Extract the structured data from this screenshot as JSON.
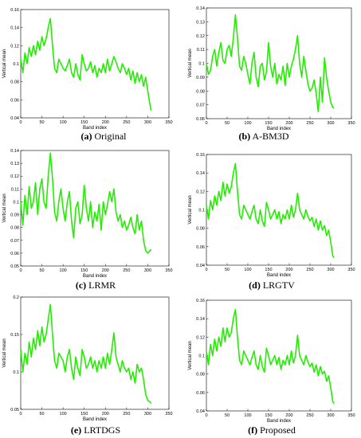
{
  "chart_data": [
    {
      "type": "line",
      "panel_letter": "(a)",
      "caption": "Original",
      "xlabel": "Band index",
      "ylabel": "Vertical mean",
      "xlim": [
        0,
        350
      ],
      "ylim": [
        0.04,
        0.16
      ],
      "xticks": [
        "0",
        "50",
        "100",
        "150",
        "200",
        "250",
        "300",
        "350"
      ],
      "yticks": [
        "0.04",
        "0.06",
        "0.08",
        "0.1",
        "0.12",
        "0.14",
        "0.16"
      ],
      "grid": false,
      "series_color": "#22ee00",
      "x": [
        0,
        5,
        10,
        15,
        20,
        25,
        30,
        35,
        40,
        45,
        50,
        55,
        60,
        65,
        70,
        75,
        80,
        85,
        90,
        95,
        100,
        105,
        110,
        115,
        120,
        125,
        130,
        135,
        140,
        145,
        150,
        155,
        160,
        165,
        170,
        175,
        180,
        185,
        190,
        195,
        200,
        205,
        210,
        215,
        220,
        225,
        230,
        235,
        240,
        245,
        250,
        255,
        260,
        265,
        270,
        275,
        280,
        285,
        290,
        295,
        300,
        305,
        308
      ],
      "y": [
        0.105,
        0.09,
        0.112,
        0.1,
        0.118,
        0.108,
        0.12,
        0.11,
        0.125,
        0.115,
        0.13,
        0.12,
        0.128,
        0.14,
        0.15,
        0.12,
        0.095,
        0.09,
        0.105,
        0.1,
        0.095,
        0.092,
        0.098,
        0.105,
        0.09,
        0.085,
        0.1,
        0.088,
        0.082,
        0.11,
        0.1,
        0.092,
        0.095,
        0.102,
        0.09,
        0.098,
        0.085,
        0.095,
        0.09,
        0.1,
        0.09,
        0.105,
        0.092,
        0.1,
        0.108,
        0.102,
        0.095,
        0.09,
        0.1,
        0.095,
        0.088,
        0.095,
        0.082,
        0.092,
        0.078,
        0.09,
        0.08,
        0.088,
        0.075,
        0.085,
        0.07,
        0.055,
        0.048
      ]
    },
    {
      "type": "line",
      "panel_letter": "(b)",
      "caption": "A-BM3D",
      "xlabel": "Band index",
      "ylabel": "Vertical mean",
      "xlim": [
        0,
        350
      ],
      "ylim": [
        0.06,
        0.14
      ],
      "xticks": [
        "0",
        "50",
        "100",
        "150",
        "200",
        "250",
        "300",
        "350"
      ],
      "yticks": [
        "0.06",
        "0.07",
        "0.08",
        "0.09",
        "0.1",
        "0.11",
        "0.12",
        "0.13",
        "0.14"
      ],
      "grid": false,
      "series_color": "#22ee00",
      "x": [
        0,
        5,
        10,
        15,
        20,
        25,
        30,
        35,
        40,
        45,
        50,
        55,
        60,
        65,
        70,
        75,
        80,
        85,
        90,
        95,
        100,
        105,
        110,
        115,
        120,
        125,
        130,
        135,
        140,
        145,
        150,
        155,
        160,
        165,
        170,
        175,
        180,
        185,
        190,
        195,
        200,
        205,
        210,
        215,
        220,
        225,
        230,
        235,
        240,
        245,
        250,
        255,
        260,
        265,
        270,
        275,
        280,
        285,
        290,
        295,
        300,
        305,
        308
      ],
      "y": [
        0.1,
        0.092,
        0.095,
        0.105,
        0.11,
        0.098,
        0.108,
        0.115,
        0.102,
        0.1,
        0.11,
        0.113,
        0.105,
        0.118,
        0.135,
        0.118,
        0.098,
        0.095,
        0.105,
        0.1,
        0.092,
        0.085,
        0.1,
        0.108,
        0.09,
        0.083,
        0.098,
        0.1,
        0.088,
        0.094,
        0.115,
        0.098,
        0.09,
        0.1,
        0.085,
        0.092,
        0.088,
        0.098,
        0.084,
        0.1,
        0.09,
        0.098,
        0.103,
        0.11,
        0.12,
        0.1,
        0.09,
        0.105,
        0.095,
        0.085,
        0.08,
        0.082,
        0.088,
        0.078,
        0.065,
        0.09,
        0.072,
        0.104,
        0.09,
        0.08,
        0.072,
        0.068,
        0.068
      ]
    },
    {
      "type": "line",
      "panel_letter": "(c)",
      "caption": "LRMR",
      "xlabel": "Band index",
      "ylabel": "Vertical mean",
      "xlim": [
        0,
        350
      ],
      "ylim": [
        0.05,
        0.14
      ],
      "xticks": [
        "0",
        "50",
        "100",
        "150",
        "200",
        "250",
        "300",
        "350"
      ],
      "yticks": [
        "0.05",
        "0.06",
        "0.07",
        "0.08",
        "0.09",
        "0.1",
        "0.11",
        "0.12",
        "0.13",
        "0.14"
      ],
      "grid": false,
      "series_color": "#22ee00",
      "x": [
        0,
        5,
        10,
        15,
        20,
        25,
        30,
        35,
        40,
        45,
        50,
        55,
        60,
        65,
        70,
        75,
        80,
        85,
        90,
        95,
        100,
        105,
        110,
        115,
        120,
        125,
        130,
        135,
        140,
        145,
        150,
        155,
        160,
        165,
        170,
        175,
        180,
        185,
        190,
        195,
        200,
        205,
        210,
        215,
        220,
        225,
        230,
        235,
        240,
        245,
        250,
        255,
        260,
        265,
        270,
        275,
        280,
        285,
        290,
        295,
        300,
        305,
        308
      ],
      "y": [
        0.1,
        0.082,
        0.105,
        0.09,
        0.112,
        0.095,
        0.1,
        0.115,
        0.09,
        0.11,
        0.118,
        0.1,
        0.095,
        0.12,
        0.138,
        0.118,
        0.092,
        0.085,
        0.1,
        0.11,
        0.095,
        0.085,
        0.1,
        0.108,
        0.085,
        0.072,
        0.095,
        0.1,
        0.083,
        0.09,
        0.113,
        0.095,
        0.085,
        0.1,
        0.08,
        0.092,
        0.085,
        0.098,
        0.078,
        0.1,
        0.09,
        0.098,
        0.108,
        0.1,
        0.11,
        0.092,
        0.085,
        0.09,
        0.08,
        0.085,
        0.078,
        0.082,
        0.088,
        0.08,
        0.075,
        0.09,
        0.078,
        0.085,
        0.07,
        0.062,
        0.06,
        0.062,
        0.063
      ]
    },
    {
      "type": "line",
      "panel_letter": "(d)",
      "caption": "LRGTV",
      "xlabel": "Band index",
      "ylabel": "Vertical mean",
      "xlim": [
        0,
        350
      ],
      "ylim": [
        0.04,
        0.16
      ],
      "xticks": [
        "0",
        "50",
        "100",
        "150",
        "200",
        "250",
        "300",
        "350"
      ],
      "yticks": [
        "0.04",
        "0.06",
        "0.08",
        "0.1",
        "0.12",
        "0.14",
        "0.16"
      ],
      "grid": false,
      "series_color": "#22ee00",
      "x": [
        0,
        5,
        10,
        15,
        20,
        25,
        30,
        35,
        40,
        45,
        50,
        55,
        60,
        65,
        70,
        75,
        80,
        85,
        90,
        95,
        100,
        105,
        110,
        115,
        120,
        125,
        130,
        135,
        140,
        145,
        150,
        155,
        160,
        165,
        170,
        175,
        180,
        185,
        190,
        195,
        200,
        205,
        210,
        215,
        220,
        225,
        230,
        235,
        240,
        245,
        250,
        255,
        260,
        265,
        270,
        275,
        280,
        285,
        290,
        295,
        300,
        305,
        308
      ],
      "y": [
        0.105,
        0.09,
        0.11,
        0.1,
        0.115,
        0.105,
        0.12,
        0.11,
        0.13,
        0.115,
        0.128,
        0.118,
        0.125,
        0.14,
        0.15,
        0.12,
        0.095,
        0.09,
        0.105,
        0.1,
        0.095,
        0.09,
        0.098,
        0.105,
        0.09,
        0.085,
        0.1,
        0.088,
        0.082,
        0.108,
        0.1,
        0.09,
        0.095,
        0.1,
        0.09,
        0.098,
        0.085,
        0.095,
        0.09,
        0.1,
        0.09,
        0.105,
        0.092,
        0.1,
        0.118,
        0.1,
        0.095,
        0.09,
        0.1,
        0.093,
        0.088,
        0.092,
        0.082,
        0.09,
        0.078,
        0.088,
        0.078,
        0.083,
        0.072,
        0.078,
        0.065,
        0.05,
        0.048
      ]
    },
    {
      "type": "line",
      "panel_letter": "(e)",
      "caption": "LRTDGS",
      "xlabel": "Band index",
      "ylabel": "Vertical mean",
      "xlim": [
        0,
        350
      ],
      "ylim": [
        0.05,
        0.2
      ],
      "xticks": [
        "0",
        "50",
        "100",
        "150",
        "200",
        "250",
        "300",
        "350"
      ],
      "yticks": [
        "0.05",
        "0.1",
        "0.15",
        "0.2"
      ],
      "grid": false,
      "series_color": "#22ee00",
      "x": [
        0,
        5,
        10,
        15,
        20,
        25,
        30,
        35,
        40,
        45,
        50,
        55,
        60,
        65,
        70,
        75,
        80,
        85,
        90,
        95,
        100,
        105,
        110,
        115,
        120,
        125,
        130,
        135,
        140,
        145,
        150,
        155,
        160,
        165,
        170,
        175,
        180,
        185,
        190,
        195,
        200,
        205,
        210,
        215,
        220,
        225,
        230,
        235,
        240,
        245,
        250,
        255,
        260,
        265,
        270,
        275,
        280,
        285,
        290,
        295,
        300,
        305,
        308
      ],
      "y": [
        0.13,
        0.1,
        0.125,
        0.11,
        0.14,
        0.12,
        0.145,
        0.13,
        0.155,
        0.135,
        0.16,
        0.14,
        0.15,
        0.17,
        0.19,
        0.15,
        0.115,
        0.105,
        0.125,
        0.12,
        0.115,
        0.1,
        0.12,
        0.13,
        0.105,
        0.09,
        0.12,
        0.105,
        0.095,
        0.13,
        0.12,
        0.105,
        0.11,
        0.12,
        0.105,
        0.115,
        0.1,
        0.115,
        0.105,
        0.12,
        0.105,
        0.125,
        0.11,
        0.13,
        0.152,
        0.12,
        0.11,
        0.1,
        0.115,
        0.105,
        0.1,
        0.105,
        0.09,
        0.1,
        0.085,
        0.11,
        0.1,
        0.105,
        0.09,
        0.07,
        0.062,
        0.06,
        0.058
      ]
    },
    {
      "type": "line",
      "panel_letter": "(f)",
      "caption": "Proposed",
      "xlabel": "Band index",
      "ylabel": "Vertical mean",
      "xlim": [
        0,
        350
      ],
      "ylim": [
        0.04,
        0.16
      ],
      "xticks": [
        "0",
        "50",
        "100",
        "150",
        "200",
        "250",
        "300",
        "350"
      ],
      "yticks": [
        "0.04",
        "0.06",
        "0.08",
        "0.1",
        "0.12",
        "0.14",
        "0.16"
      ],
      "grid": false,
      "series_color": "#22ee00",
      "x": [
        0,
        5,
        10,
        15,
        20,
        25,
        30,
        35,
        40,
        45,
        50,
        55,
        60,
        65,
        70,
        75,
        80,
        85,
        90,
        95,
        100,
        105,
        110,
        115,
        120,
        125,
        130,
        135,
        140,
        145,
        150,
        155,
        160,
        165,
        170,
        175,
        180,
        185,
        190,
        195,
        200,
        205,
        210,
        215,
        220,
        225,
        230,
        235,
        240,
        245,
        250,
        255,
        260,
        265,
        270,
        275,
        280,
        285,
        290,
        295,
        300,
        305,
        308
      ],
      "y": [
        0.105,
        0.09,
        0.112,
        0.1,
        0.118,
        0.105,
        0.12,
        0.11,
        0.13,
        0.115,
        0.13,
        0.12,
        0.125,
        0.14,
        0.15,
        0.12,
        0.095,
        0.09,
        0.105,
        0.1,
        0.095,
        0.09,
        0.098,
        0.105,
        0.09,
        0.085,
        0.1,
        0.088,
        0.082,
        0.108,
        0.1,
        0.09,
        0.095,
        0.1,
        0.09,
        0.098,
        0.085,
        0.095,
        0.09,
        0.1,
        0.09,
        0.105,
        0.092,
        0.1,
        0.122,
        0.1,
        0.095,
        0.09,
        0.1,
        0.093,
        0.088,
        0.092,
        0.082,
        0.09,
        0.078,
        0.088,
        0.08,
        0.083,
        0.072,
        0.078,
        0.065,
        0.05,
        0.048
      ]
    }
  ]
}
